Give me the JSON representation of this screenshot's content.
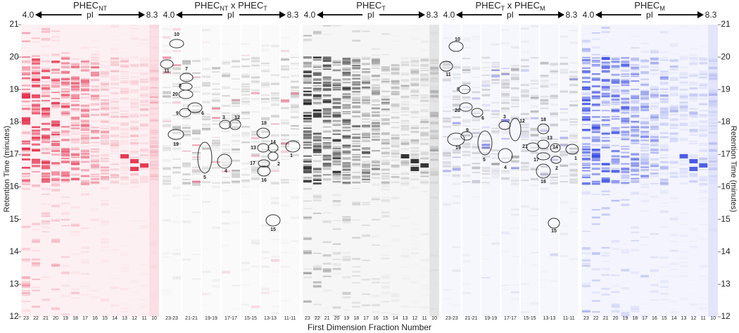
{
  "axis": {
    "y_label": "Retention Time (minutes)",
    "x_label": "First Dimension Fraction Number",
    "yticks": [
      12,
      13,
      14,
      15,
      16,
      17,
      18,
      19,
      20,
      21
    ]
  },
  "panels": [
    {
      "title": [
        "PHEC",
        "NT"
      ],
      "pi_low": "4.0",
      "pi_label": "pI",
      "pi_high": "8.3",
      "fractions": [
        "23",
        "22",
        "21",
        "20",
        "19",
        "18",
        "17",
        "16",
        "15",
        "14",
        "13",
        "12",
        "11",
        "10"
      ],
      "spots": []
    },
    {
      "title": [
        "PHEC",
        "NT",
        " x PHEC",
        "T"
      ],
      "pi_low": "4.0",
      "pi_label": "pI",
      "pi_high": "8.3",
      "fractions": [
        "23-23",
        "21-21",
        "19-19",
        "17-17",
        "15-15",
        "13-13",
        "11-11"
      ],
      "spots": [
        "10",
        "11",
        "7",
        "8",
        "20",
        "6",
        "9",
        "3",
        "12",
        "19",
        "18",
        "14",
        "13",
        "1",
        "5",
        "4",
        "17",
        "2",
        "16",
        "15"
      ]
    },
    {
      "title": [
        "PHEC",
        "T"
      ],
      "pi_low": "4.0",
      "pi_label": "pI",
      "pi_high": "8.3",
      "fractions": [
        "23",
        "22",
        "21",
        "20",
        "19",
        "18",
        "17",
        "16",
        "15",
        "14",
        "13",
        "12",
        "11",
        "10"
      ],
      "spots": []
    },
    {
      "title": [
        "PHEC",
        "T",
        " x PHEC",
        "M"
      ],
      "pi_low": "4.0",
      "pi_label": "pI",
      "pi_high": "8.3",
      "fractions": [
        "23-23",
        "21-21",
        "19-19",
        "17-17",
        "15-15",
        "13-13",
        "11-11"
      ],
      "spots": [
        "10",
        "11",
        "8",
        "20",
        "6",
        "9",
        "19",
        "5",
        "3",
        "12",
        "4",
        "18",
        "13",
        "21",
        "14",
        "17",
        "2",
        "16",
        "1",
        "15"
      ]
    },
    {
      "title": [
        "PHEC",
        "M"
      ],
      "pi_low": "4.0",
      "pi_label": "pI",
      "pi_high": "8.3",
      "fractions": [
        "23",
        "22",
        "21",
        "20",
        "19",
        "18",
        "17",
        "16",
        "15",
        "14",
        "13",
        "12",
        "11",
        "10"
      ],
      "spots": []
    }
  ]
}
